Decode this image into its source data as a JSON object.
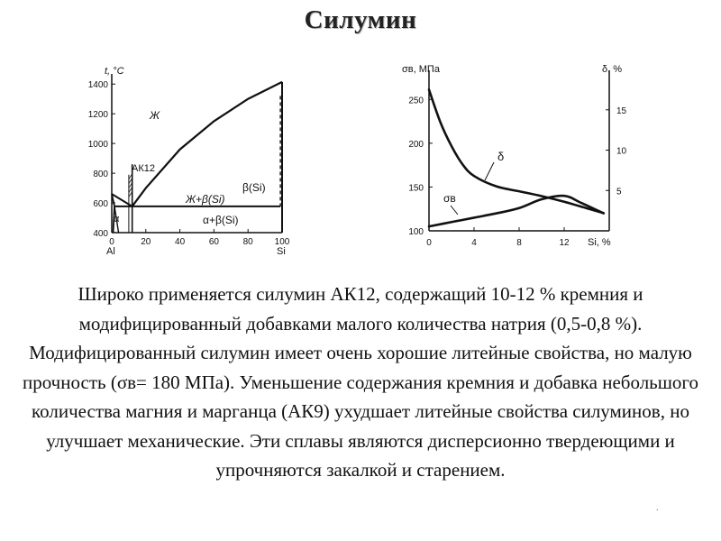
{
  "slide": {
    "title": "Силумин",
    "body": "Широко применяется силумин АК12, содержащий 10-12 % кремния и модифицированный добавками малого количества натрия (0,5-0,8 %). Модифицированный силумин имеет очень хорошие литейные свойства, но малую прочность (σв= 180 МПа). Уменьшение содержания кремния и добавка небольшого количества магния и марганца (АК9) ухудшает литейные свойства силуминов, но улучшает механические. Эти сплавы являются дисперсионно твердеющими и упрочняются закалкой и старением.",
    "footer_mark": "."
  },
  "chart_data": [
    {
      "type": "line",
      "ylabel": "t, °C",
      "x_ticks": [
        "0",
        "20",
        "40",
        "60",
        "80",
        "100"
      ],
      "y_ticks": [
        "400",
        "600",
        "800",
        "1000",
        "1200",
        "1400"
      ],
      "x_end_labels": [
        "Al",
        "Si"
      ],
      "xlim": [
        0,
        100
      ],
      "ylim": [
        400,
        1450
      ],
      "region_labels": {
        "liquid": "Ж",
        "eutectic": "АК12",
        "liquid_plus_beta": "Ж+β(Si)",
        "beta": "β(Si)",
        "alpha_plus_beta": "α+β(Si)",
        "alpha": "α"
      },
      "liquidus_si_side": [
        [
          12,
          577
        ],
        [
          20,
          700
        ],
        [
          40,
          960
        ],
        [
          60,
          1150
        ],
        [
          80,
          1300
        ],
        [
          100,
          1414
        ]
      ],
      "liquidus_al_side": [
        [
          0,
          660
        ],
        [
          12,
          577
        ]
      ],
      "eutectic_temperature": 577,
      "eutectic_si_percent": 12
    },
    {
      "type": "line",
      "ylabel_left": "σв, МПа",
      "ylabel_right": "δ, %",
      "xlabel": "Si, %",
      "x_ticks": [
        "0",
        "4",
        "8",
        "12"
      ],
      "y_left_ticks": [
        "100",
        "150",
        "200",
        "250"
      ],
      "y_right_ticks": [
        "5",
        "10",
        "15"
      ],
      "xlim": [
        0,
        16
      ],
      "ylim_left": [
        100,
        275
      ],
      "ylim_right": [
        0,
        19
      ],
      "series": [
        {
          "name": "δ",
          "axis": "right",
          "x": [
            0,
            1,
            2,
            3,
            4,
            6,
            8,
            10,
            12,
            14,
            15.5
          ],
          "y": [
            17.5,
            13.5,
            10.5,
            8.2,
            6.8,
            5.5,
            4.9,
            4.3,
            3.6,
            2.8,
            2.2
          ]
        },
        {
          "name": "σв",
          "axis": "left",
          "x": [
            0,
            2,
            4,
            6,
            8,
            10,
            12,
            13.5,
            15.5
          ],
          "y": [
            105,
            110,
            115,
            120,
            126,
            136,
            140,
            132,
            120
          ]
        }
      ]
    }
  ]
}
